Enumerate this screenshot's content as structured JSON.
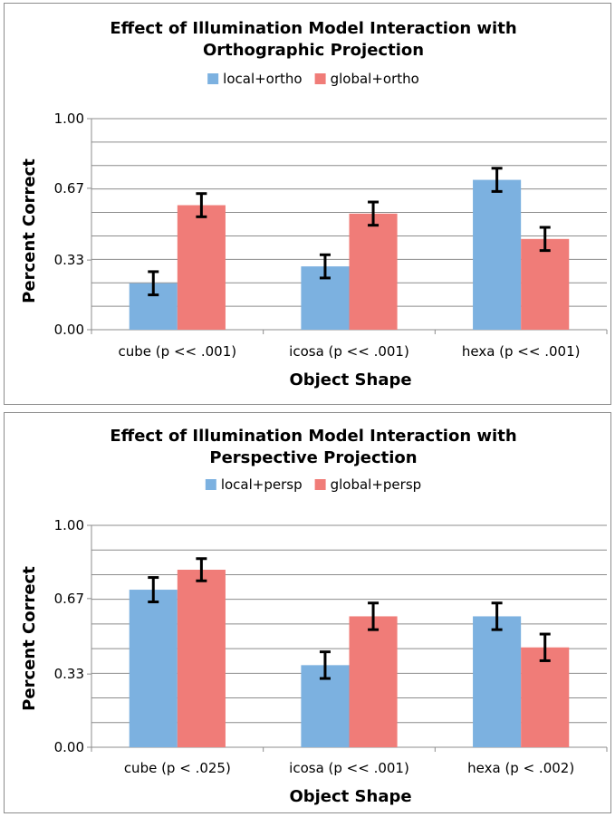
{
  "colors": {
    "local": "#7cb1e0",
    "global": "#f07c78",
    "grid": "#8c8c8c",
    "error_bar": "#000000"
  },
  "chart_data": [
    {
      "type": "bar",
      "title_lines": [
        "Effect of Illumination Model Interaction with",
        "Orthographic Projection"
      ],
      "categories": [
        "cube (p << .001)",
        "icosa (p << .001)",
        "hexa (p << .001)"
      ],
      "series": [
        {
          "name": "local+ortho",
          "values": [
            0.22,
            0.3,
            0.71
          ],
          "error": [
            0.055,
            0.055,
            0.055
          ]
        },
        {
          "name": "global+ortho",
          "values": [
            0.59,
            0.55,
            0.43
          ],
          "error": [
            0.055,
            0.055,
            0.055
          ]
        }
      ],
      "xlabel": "Object Shape",
      "ylabel": "Percent Correct",
      "ylim": [
        0,
        1
      ],
      "yticks": [
        0,
        0.33,
        0.67,
        1
      ],
      "ytick_labels": [
        "0.00",
        "0.33",
        "0.67",
        "1.00"
      ],
      "grid": true,
      "legend": "top"
    },
    {
      "type": "bar",
      "title_lines": [
        "Effect of Illumination Model Interaction with",
        "Perspective Projection"
      ],
      "categories": [
        "cube (p < .025)",
        "icosa (p << .001)",
        "hexa (p < .002)"
      ],
      "series": [
        {
          "name": "local+persp",
          "values": [
            0.71,
            0.37,
            0.59
          ],
          "error": [
            0.055,
            0.06,
            0.06
          ]
        },
        {
          "name": "global+persp",
          "values": [
            0.8,
            0.59,
            0.45
          ],
          "error": [
            0.05,
            0.06,
            0.06
          ]
        }
      ],
      "xlabel": "Object Shape",
      "ylabel": "Percent Correct",
      "ylim": [
        0,
        1
      ],
      "yticks": [
        0,
        0.33,
        0.67,
        1
      ],
      "ytick_labels": [
        "0.00",
        "0.33",
        "0.67",
        "1.00"
      ],
      "grid": true,
      "legend": "top"
    }
  ]
}
